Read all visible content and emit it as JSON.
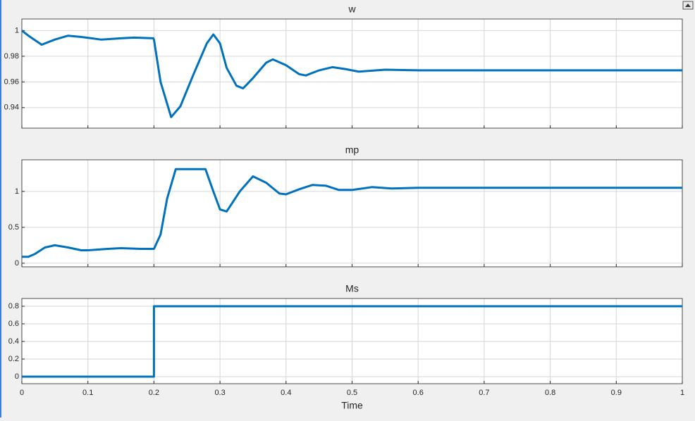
{
  "chart_data": [
    {
      "type": "line",
      "title": "w",
      "color": "#0072bd",
      "grid": true,
      "xlim": [
        0,
        1
      ],
      "xticks": [
        0,
        0.1,
        0.2,
        0.3,
        0.4,
        0.5,
        0.6,
        0.7,
        0.8,
        0.9,
        1
      ],
      "ylim": [
        0.924,
        1.009
      ],
      "yticks": [
        0.94,
        0.96,
        0.98,
        1
      ],
      "x": [
        0,
        0.01,
        0.03,
        0.05,
        0.07,
        0.09,
        0.12,
        0.15,
        0.17,
        0.199,
        0.2,
        0.21,
        0.226,
        0.24,
        0.26,
        0.28,
        0.29,
        0.3,
        0.31,
        0.325,
        0.335,
        0.35,
        0.37,
        0.38,
        0.4,
        0.42,
        0.43,
        0.45,
        0.47,
        0.49,
        0.51,
        0.55,
        0.6,
        0.7,
        0.8,
        0.9,
        1
      ],
      "values": [
        1,
        0.996,
        0.989,
        0.993,
        0.996,
        0.995,
        0.993,
        0.994,
        0.9945,
        0.994,
        0.993,
        0.96,
        0.9326,
        0.941,
        0.966,
        0.99,
        0.997,
        0.99,
        0.971,
        0.957,
        0.955,
        0.963,
        0.975,
        0.9775,
        0.973,
        0.966,
        0.965,
        0.969,
        0.9715,
        0.97,
        0.968,
        0.9695,
        0.969,
        0.969,
        0.969,
        0.969,
        0.969
      ]
    },
    {
      "type": "line",
      "title": "mp",
      "color": "#0072bd",
      "grid": true,
      "xlim": [
        0,
        1
      ],
      "xticks": [
        0,
        0.1,
        0.2,
        0.3,
        0.4,
        0.5,
        0.6,
        0.7,
        0.8,
        0.9,
        1
      ],
      "ylim": [
        -0.05,
        1.44
      ],
      "yticks": [
        0,
        0.5,
        1
      ],
      "x": [
        0,
        0.01,
        0.02,
        0.035,
        0.05,
        0.07,
        0.09,
        0.1,
        0.13,
        0.15,
        0.18,
        0.2,
        0.21,
        0.22,
        0.233,
        0.278,
        0.29,
        0.3,
        0.31,
        0.33,
        0.35,
        0.37,
        0.39,
        0.4,
        0.42,
        0.44,
        0.46,
        0.48,
        0.5,
        0.53,
        0.56,
        0.6,
        0.7,
        0.8,
        1
      ],
      "values": [
        0.09,
        0.09,
        0.13,
        0.22,
        0.25,
        0.22,
        0.18,
        0.18,
        0.2,
        0.21,
        0.2,
        0.2,
        0.4,
        0.9,
        1.31,
        1.31,
        1.0,
        0.75,
        0.72,
        1.0,
        1.21,
        1.12,
        0.97,
        0.96,
        1.03,
        1.09,
        1.08,
        1.02,
        1.02,
        1.06,
        1.04,
        1.05,
        1.05,
        1.05,
        1.05
      ]
    },
    {
      "type": "line",
      "title": "Ms",
      "color": "#0072bd",
      "grid": true,
      "xlabel": "Time",
      "xlim": [
        0,
        1
      ],
      "xticks": [
        0,
        0.1,
        0.2,
        0.3,
        0.4,
        0.5,
        0.6,
        0.7,
        0.8,
        0.9,
        1
      ],
      "ylim": [
        -0.08,
        0.888
      ],
      "yticks": [
        0,
        0.2,
        0.4,
        0.6,
        0.8
      ],
      "x": [
        0,
        0.2,
        0.2,
        1
      ],
      "values": [
        0,
        0,
        0.8,
        0.8
      ]
    }
  ]
}
